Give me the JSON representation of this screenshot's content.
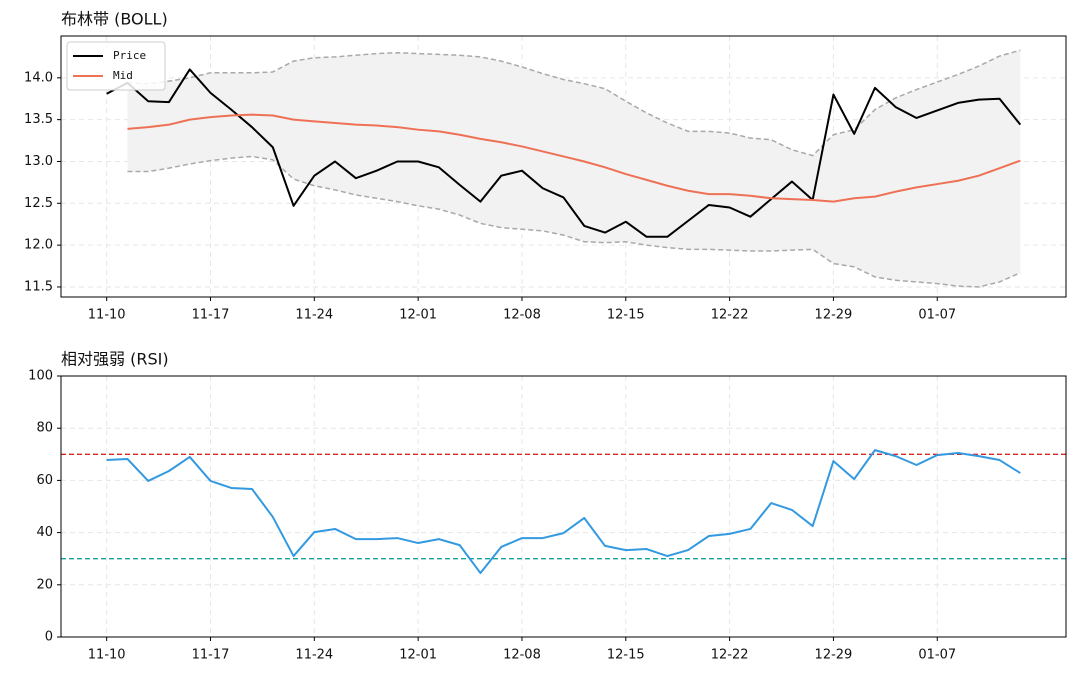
{
  "chart_data": [
    {
      "type": "line",
      "title": "布林带 (BOLL)",
      "categories": [
        "11-10",
        null,
        null,
        null,
        null,
        "11-17",
        null,
        null,
        null,
        null,
        "11-24",
        null,
        null,
        null,
        null,
        "12-01",
        null,
        null,
        null,
        null,
        "12-08",
        null,
        null,
        null,
        null,
        "12-15",
        null,
        null,
        null,
        null,
        "12-22",
        null,
        null,
        null,
        null,
        "12-29",
        null,
        null,
        null,
        null,
        "01-07",
        null,
        null,
        null,
        null
      ],
      "series": [
        {
          "name": "Price",
          "color": "#000000",
          "values": [
            13.81,
            13.94,
            13.72,
            13.71,
            14.1,
            13.82,
            13.62,
            13.41,
            13.17,
            12.47,
            12.83,
            13.0,
            12.8,
            12.89,
            13.0,
            13.0,
            12.93,
            12.72,
            12.52,
            12.83,
            12.89,
            12.68,
            12.57,
            12.23,
            12.15,
            12.28,
            12.1,
            12.1,
            12.29,
            12.48,
            12.45,
            12.34,
            12.55,
            12.76,
            12.54,
            13.8,
            13.33,
            13.88,
            13.65,
            13.52,
            13.61,
            13.7,
            13.74,
            13.75,
            13.44
          ]
        },
        {
          "name": "Mid",
          "color": "#ee7155",
          "values": [
            null,
            13.39,
            13.41,
            13.44,
            13.5,
            13.53,
            13.55,
            13.56,
            13.55,
            13.5,
            13.48,
            13.46,
            13.44,
            13.43,
            13.41,
            13.38,
            13.36,
            13.32,
            13.27,
            13.23,
            13.18,
            13.12,
            13.06,
            13.0,
            12.93,
            12.85,
            12.78,
            12.71,
            12.65,
            12.61,
            12.61,
            12.59,
            12.56,
            12.55,
            12.54,
            12.52,
            12.56,
            12.58,
            12.64,
            12.69,
            12.73,
            12.77,
            12.83,
            12.92,
            13.01
          ]
        }
      ],
      "band": {
        "color": "#a9a9a9",
        "fill": "#f2f2f2",
        "upper": [
          null,
          13.94,
          13.93,
          13.96,
          14.0,
          14.06,
          14.06,
          14.06,
          14.07,
          14.2,
          14.24,
          14.25,
          14.27,
          14.29,
          14.3,
          14.29,
          14.28,
          14.27,
          14.25,
          14.2,
          14.13,
          14.05,
          13.98,
          13.93,
          13.87,
          13.72,
          13.58,
          13.46,
          13.36,
          13.36,
          13.34,
          13.28,
          13.26,
          13.14,
          13.07,
          13.32,
          13.38,
          13.62,
          13.76,
          13.86,
          13.95,
          14.04,
          14.14,
          14.26,
          14.33
        ],
        "lower": [
          null,
          12.88,
          12.88,
          12.92,
          12.97,
          13.01,
          13.04,
          13.06,
          13.02,
          12.79,
          12.71,
          12.66,
          12.6,
          12.56,
          12.52,
          12.47,
          12.43,
          12.36,
          12.26,
          12.21,
          12.19,
          12.17,
          12.12,
          12.04,
          12.03,
          12.04,
          12.0,
          11.97,
          11.95,
          11.95,
          11.94,
          11.93,
          11.93,
          11.94,
          11.95,
          11.78,
          11.74,
          11.62,
          11.58,
          11.56,
          11.54,
          11.51,
          11.5,
          11.56,
          11.67
        ]
      },
      "xlim": [
        -2.2,
        46.2
      ],
      "ylim": [
        11.38,
        14.5
      ],
      "yticks": [
        11.5,
        {
          "value": 12.0,
          "label": "12.0"
        },
        12.5,
        {
          "value": 13.0,
          "label": "13.0"
        },
        13.5,
        {
          "value": 14.0,
          "label": "14.0"
        }
      ],
      "grid": true,
      "legend": "upper left"
    },
    {
      "type": "line",
      "title": "相对强弱 (RSI)",
      "categories": [
        "11-10",
        null,
        null,
        null,
        null,
        "11-17",
        null,
        null,
        null,
        null,
        "11-24",
        null,
        null,
        null,
        null,
        "12-01",
        null,
        null,
        null,
        null,
        "12-08",
        null,
        null,
        null,
        null,
        "12-15",
        null,
        null,
        null,
        null,
        "12-22",
        null,
        null,
        null,
        null,
        "12-29",
        null,
        null,
        null,
        null,
        "01-07",
        null,
        null,
        null,
        null
      ],
      "series": [
        {
          "color": "#3399e0",
          "values": [
            67.8,
            68.2,
            59.8,
            63.6,
            69.0,
            59.8,
            57.1,
            56.7,
            46.0,
            31.0,
            40.2,
            41.4,
            37.5,
            37.5,
            37.9,
            36.0,
            37.5,
            35.2,
            24.5,
            34.5,
            37.9,
            37.9,
            39.8,
            45.6,
            34.9,
            33.3,
            33.7,
            31.0,
            33.3,
            38.7,
            39.5,
            41.4,
            51.3,
            48.7,
            42.5,
            67.4,
            60.5,
            71.6,
            69.3,
            65.9,
            69.7,
            70.5,
            69.3,
            67.8,
            62.8
          ]
        }
      ],
      "hlines": [
        {
          "value": 70,
          "color": "#d62728"
        },
        {
          "value": 30,
          "color": "#17a2a0"
        }
      ],
      "xlim": [
        -2.2,
        46.2
      ],
      "ylim": [
        0,
        100
      ],
      "yticks": [
        0,
        20,
        40,
        60,
        80,
        100
      ],
      "grid": true
    }
  ]
}
